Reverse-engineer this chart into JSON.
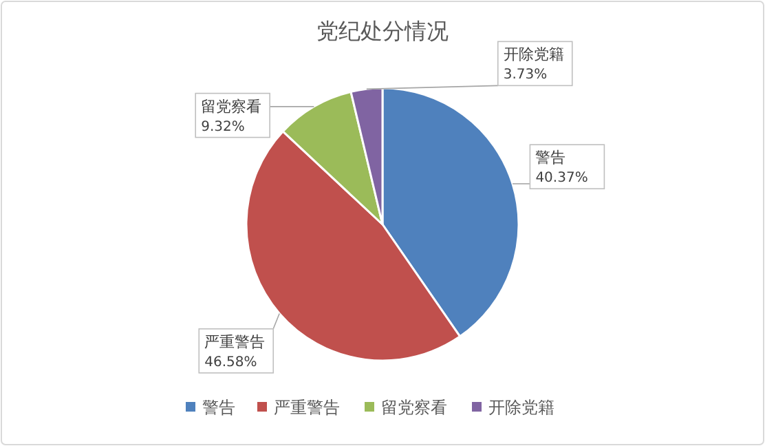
{
  "chart_data": {
    "type": "pie",
    "title": "党纪处分情况",
    "categories": [
      "警告",
      "严重警告",
      "留党察看",
      "开除党籍"
    ],
    "values": [
      40.37,
      46.58,
      9.32,
      3.73
    ],
    "colors": [
      "#4f81bd",
      "#c0504d",
      "#9bbb59",
      "#8064a2"
    ],
    "value_labels": [
      "40.37%",
      "46.58%",
      "9.32%",
      "3.73%"
    ],
    "legend": "bottom"
  }
}
